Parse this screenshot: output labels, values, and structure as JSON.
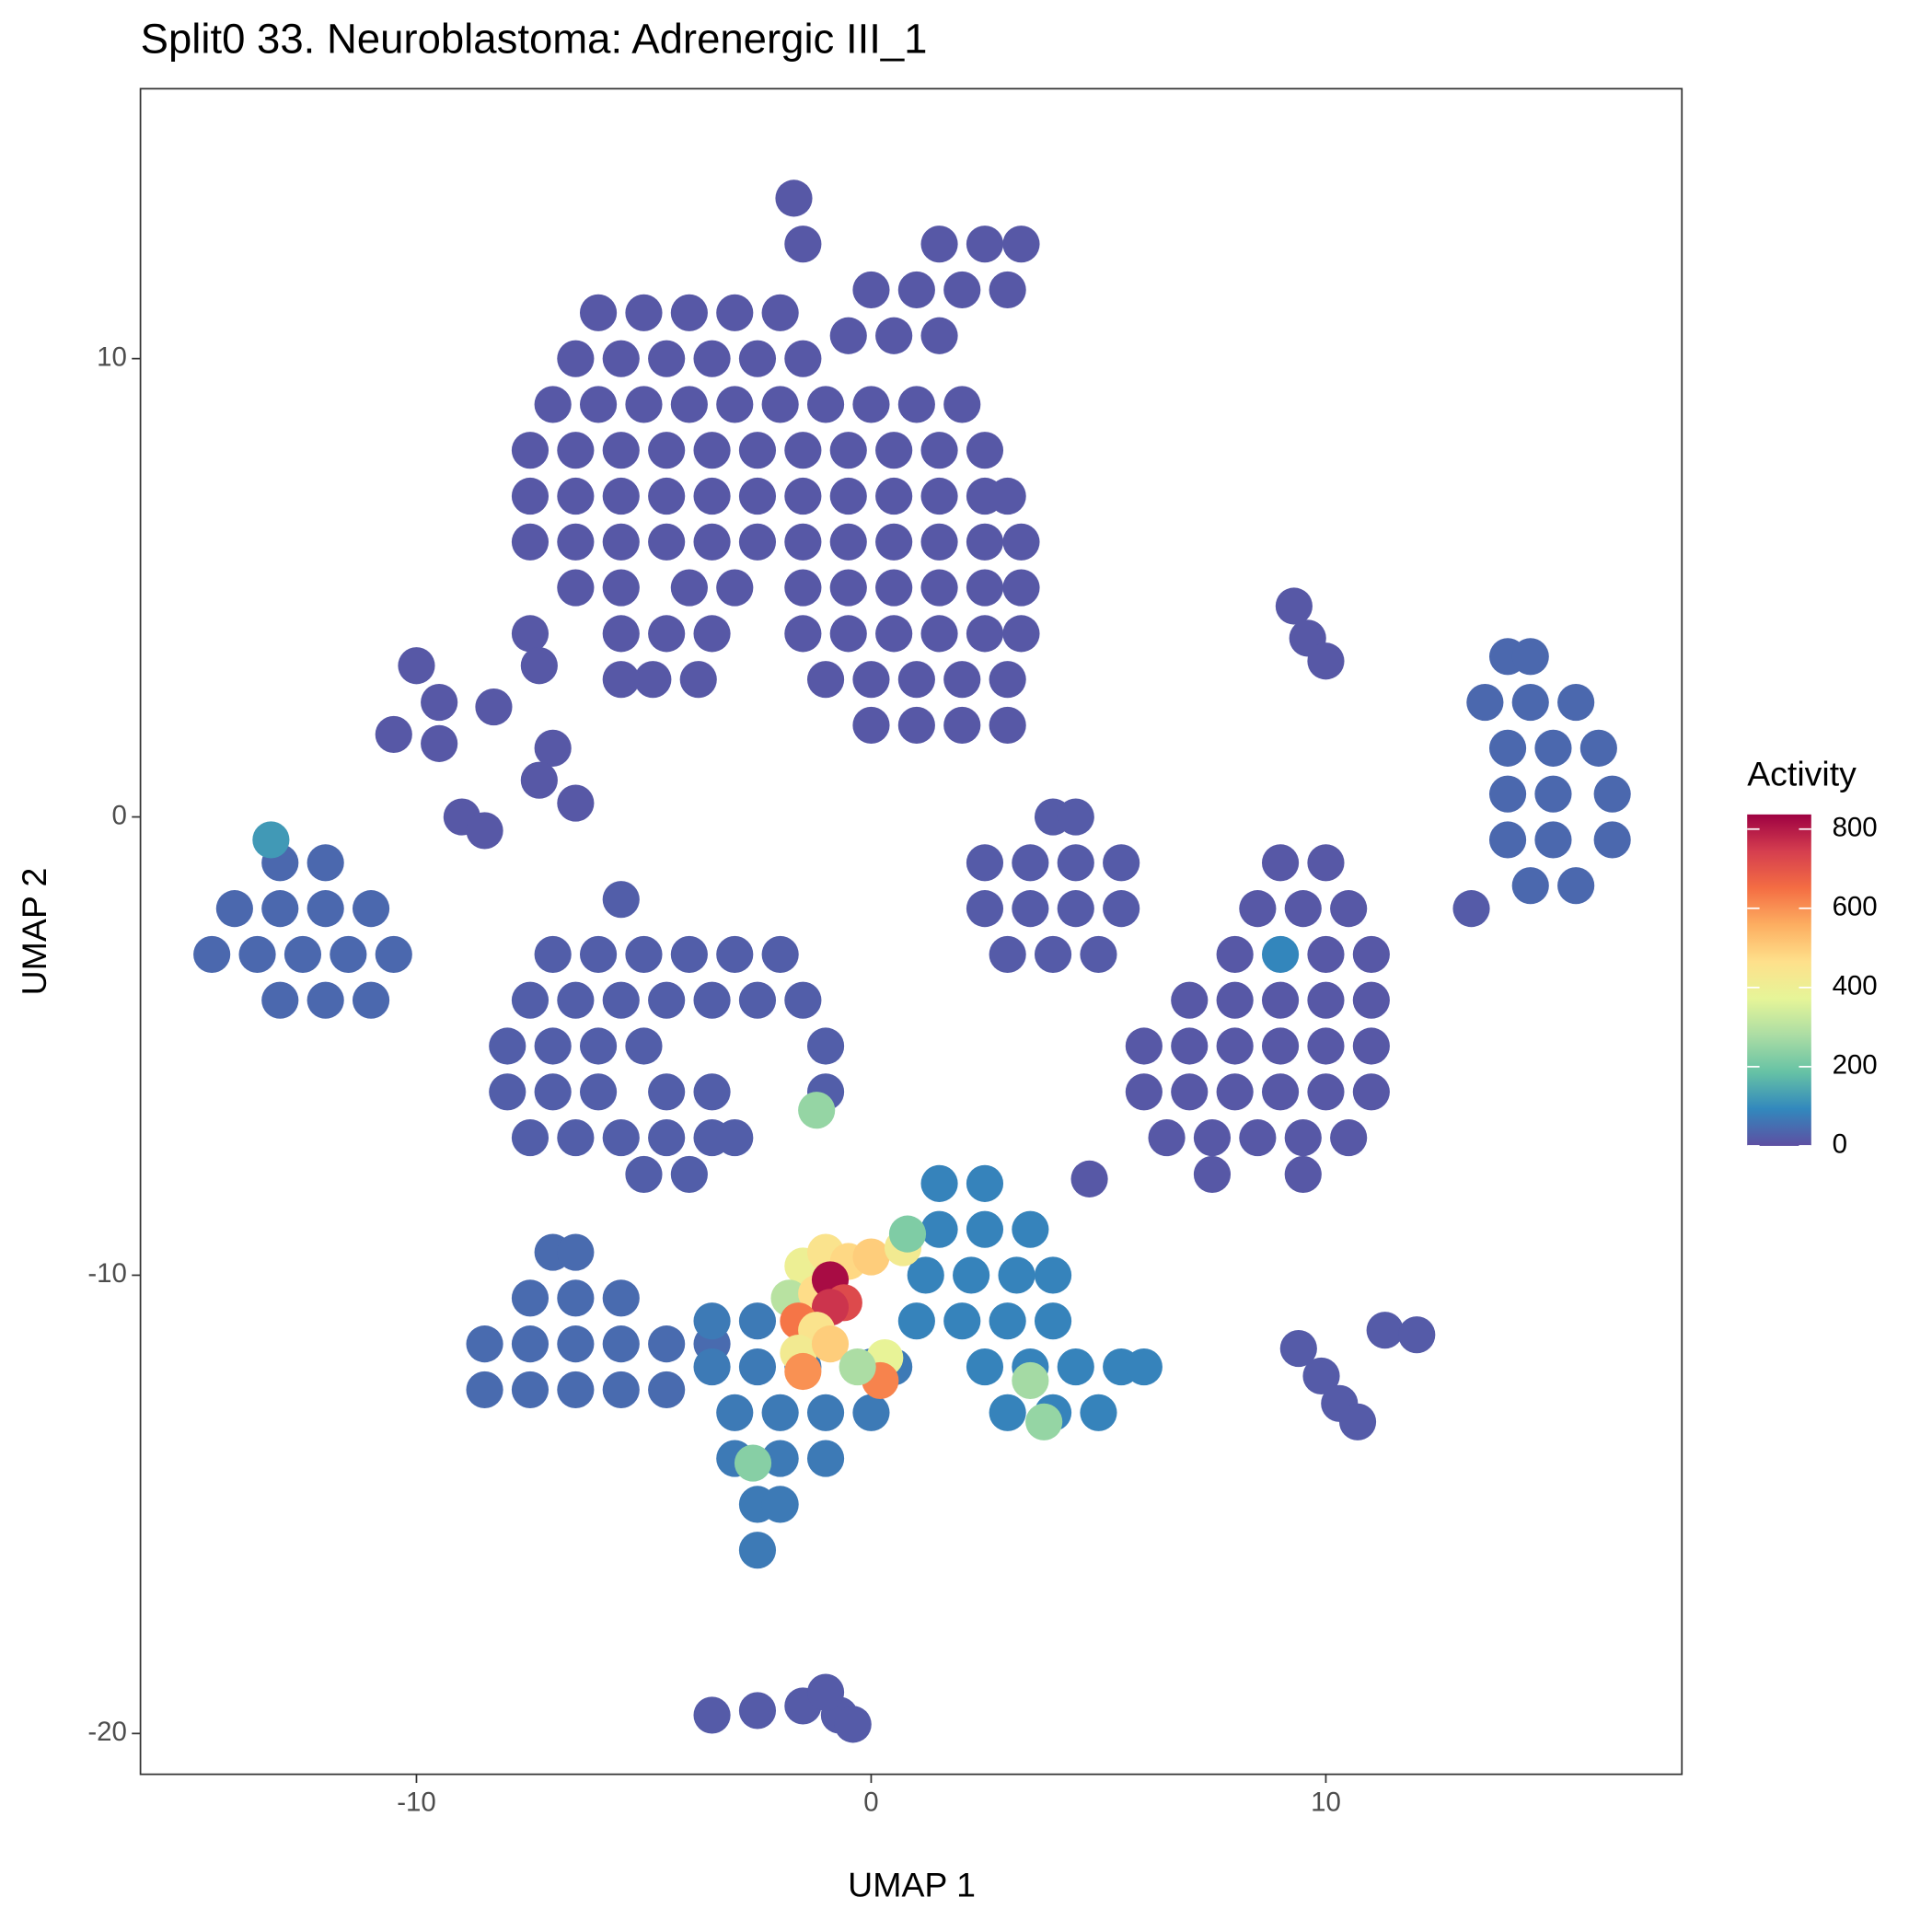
{
  "chart_data": {
    "type": "scatter",
    "title": "Split0 33. Neuroblastoma: Adrenergic III_1",
    "xlabel": "UMAP 1",
    "ylabel": "UMAP 2",
    "xlim": [
      -16.07,
      17.83
    ],
    "ylim": [
      -20.89,
      15.89
    ],
    "xticks": [
      -10,
      0,
      10
    ],
    "yticks": [
      -20,
      -10,
      0,
      10
    ],
    "colorbar": {
      "title": "Activity",
      "lim": [
        0,
        837
      ],
      "ticks": [
        0,
        200,
        400,
        600,
        800
      ],
      "colors": [
        "#5E4FA2",
        "#3288BD",
        "#66C2A5",
        "#ABDDA4",
        "#E6F598",
        "#FEE08B",
        "#FDAE61",
        "#F46D43",
        "#D53E4F",
        "#9E0142"
      ]
    },
    "x": [
      -6,
      -5,
      -4,
      -3,
      -2,
      -6.5,
      -5.5,
      -4.5,
      -3.5,
      -2.5,
      -1.5,
      -7,
      -6,
      -5,
      -4,
      -3,
      -2,
      -1,
      0,
      1,
      2,
      -7.5,
      -6.5,
      -5.5,
      -4.5,
      -3.5,
      -2.5,
      -1.5,
      -0.5,
      0.5,
      1.5,
      2.5,
      -7.5,
      -6.5,
      -5.5,
      -4.5,
      -3.5,
      -2.5,
      -1.5,
      -0.5,
      0.5,
      1.5,
      2.5,
      3,
      -7.5,
      -6.5,
      -5.5,
      -4.5,
      -3.5,
      -2.5,
      -1.5,
      -0.5,
      0.5,
      1.5,
      2.5,
      3.3,
      -6.5,
      -5.5,
      -4,
      -3,
      -1.5,
      -0.5,
      0.5,
      1.5,
      2.5,
      3.3,
      -5.5,
      -4.5,
      -3.5,
      -1.5,
      -0.5,
      0.5,
      1.5,
      2.5,
      3.3,
      -5.5,
      -4.8,
      -3.8,
      -1,
      0,
      1,
      2,
      3,
      0,
      1,
      2,
      3,
      -1.5,
      1.5,
      2.5,
      3.3,
      0,
      1,
      2,
      3,
      -0.5,
      0.5,
      1.5,
      -1.7,
      -13,
      -12,
      -14,
      -13,
      -12,
      -11,
      -14.5,
      -13.5,
      -12.5,
      -11.5,
      -10.5,
      -13,
      -12,
      -11,
      -13.2,
      -10,
      -9.5,
      -10.5,
      -9.5,
      -8.3,
      -7.5,
      -7.3,
      -7,
      -7.3,
      -6.5,
      -9,
      -8.5,
      -7,
      -6,
      -5,
      -4,
      -3,
      -2,
      -7.5,
      -6.5,
      -5.5,
      -4.5,
      -3.5,
      -2.5,
      -1.5,
      -8,
      -7,
      -6,
      -5,
      -1,
      -8,
      -7,
      -6,
      -4.5,
      -3.5,
      -1,
      -7.5,
      -6.5,
      -5.5,
      -4.5,
      -3.5,
      -3,
      -5,
      -4,
      -5.5,
      -1.2,
      4,
      4.5,
      2.5,
      3.5,
      4.5,
      5.5,
      2.5,
      3.5,
      4.5,
      5.5,
      3,
      4,
      5,
      9,
      10,
      8.5,
      9.5,
      10.5,
      8,
      9,
      10,
      11,
      7,
      8,
      9,
      10,
      11,
      6,
      7,
      8,
      9,
      10,
      11,
      6,
      7,
      8,
      9,
      10,
      11,
      6.5,
      7.5,
      8.5,
      9.5,
      10.5,
      7.5,
      9.5,
      4.8,
      14,
      14.5,
      13.5,
      14.5,
      15.5,
      14,
      15,
      16,
      14,
      15,
      16.3,
      14,
      15,
      16.3,
      14.5,
      15.5,
      13.2,
      9.3,
      9.6,
      10,
      -7,
      -6.5,
      -7.5,
      -6.5,
      -5.5,
      -8.5,
      -7.5,
      -6.5,
      -5.5,
      -4.5,
      -3.5,
      -8.5,
      -7.5,
      -6.5,
      -5.5,
      -4.5,
      -3.5,
      -2.5,
      -3.5,
      -2.5,
      -1.5,
      0,
      0.5,
      -3,
      -2,
      -1,
      0,
      -3,
      -2,
      -1,
      -2.5,
      -2,
      -2.5,
      -2.6,
      1.5,
      2.5,
      1.5,
      2.5,
      3.5,
      1.2,
      2.2,
      3.2,
      4,
      1,
      2,
      3,
      4,
      2.5,
      3.5,
      4.5,
      5.5,
      6,
      3,
      4,
      5,
      3.5,
      3.8,
      -3.5,
      -2.5,
      -1.5,
      -0.7,
      -1,
      -0.4,
      11.3,
      12,
      9.4,
      9.9,
      10.3,
      10.7,
      -1.5,
      -1,
      -0.5,
      0,
      -1.8,
      -1.2,
      -0.9,
      -0.6,
      -0.9,
      -1.6,
      -1.2,
      -1.6,
      -1.5,
      -0.9,
      0.3,
      0.2,
      -0.3,
      0.7,
      0.8
    ],
    "y": [
      11,
      11,
      11,
      11,
      11,
      10,
      10,
      10,
      10,
      10,
      10,
      9,
      9,
      9,
      9,
      9,
      9,
      9,
      9,
      9,
      9,
      8,
      8,
      8,
      8,
      8,
      8,
      8,
      8,
      8,
      8,
      8,
      7,
      7,
      7,
      7,
      7,
      7,
      7,
      7,
      7,
      7,
      7,
      7,
      6,
      6,
      6,
      6,
      6,
      6,
      6,
      6,
      6,
      6,
      6,
      6,
      5,
      5,
      5,
      5,
      5,
      5,
      5,
      5,
      5,
      5,
      4,
      4,
      4,
      4,
      4,
      4,
      4,
      4,
      4,
      3,
      3,
      3,
      3,
      3,
      3,
      3,
      3,
      2,
      2,
      2,
      2,
      12.5,
      12.5,
      12.5,
      12.5,
      11.5,
      11.5,
      11.5,
      11.5,
      10.5,
      10.5,
      10.5,
      13.5,
      -1,
      -1,
      -2,
      -2,
      -2,
      -2,
      -3,
      -3,
      -3,
      -3,
      -3,
      -4,
      -4,
      -4,
      -0.5,
      3.3,
      2.5,
      1.8,
      1.6,
      2.4,
      4,
      3.3,
      1.5,
      0.8,
      0.3,
      0,
      -0.3,
      -3,
      -3,
      -3,
      -3,
      -3,
      -3,
      -4,
      -4,
      -4,
      -4,
      -4,
      -4,
      -4,
      -5,
      -5,
      -5,
      -5,
      -5,
      -6,
      -6,
      -6,
      -6,
      -6,
      -6,
      -7,
      -7,
      -7,
      -7,
      -7,
      -7,
      -7.8,
      -7.8,
      -1.8,
      -6.4,
      0,
      0,
      -1,
      -1,
      -1,
      -1,
      -2,
      -2,
      -2,
      -2,
      -3,
      -3,
      -3,
      -1,
      -1,
      -2,
      -2,
      -2,
      -3,
      -3,
      -3,
      -3,
      -4,
      -4,
      -4,
      -4,
      -4,
      -5,
      -5,
      -5,
      -5,
      -5,
      -5,
      -6,
      -6,
      -6,
      -6,
      -6,
      -6,
      -7,
      -7,
      -7,
      -7,
      -7,
      -7.8,
      -7.8,
      -7.9,
      3.5,
      3.5,
      2.5,
      2.5,
      2.5,
      1.5,
      1.5,
      1.5,
      0.5,
      0.5,
      0.5,
      -0.5,
      -0.5,
      -0.5,
      -1.5,
      -1.5,
      -2,
      4.6,
      3.9,
      3.4,
      -9.5,
      -9.5,
      -10.5,
      -10.5,
      -10.5,
      -11.5,
      -11.5,
      -11.5,
      -11.5,
      -11.5,
      -11.5,
      -12.5,
      -12.5,
      -12.5,
      -12.5,
      -12.5,
      -11,
      -11,
      -12,
      -12,
      -12,
      -12,
      -12,
      -13,
      -13,
      -13,
      -13,
      -14,
      -14,
      -14,
      -15,
      -15,
      -16,
      -14.1,
      -8,
      -8,
      -9,
      -9,
      -9,
      -10,
      -10,
      -10,
      -10,
      -11,
      -11,
      -11,
      -11,
      -12,
      -12,
      -12,
      -12,
      -12,
      -13,
      -13,
      -13,
      -12.3,
      -13.2,
      -19.6,
      -19.5,
      -19.4,
      -19.6,
      -19.1,
      -19.8,
      -11.2,
      -11.3,
      -11.6,
      -12.2,
      -12.8,
      -13.2,
      -9.8,
      -9.5,
      -9.7,
      -9.6,
      -10.5,
      -10.4,
      -10.1,
      -10.6,
      -10.7,
      -11,
      -11.2,
      -11.7,
      -12.1,
      -11.5,
      -11.8,
      -12.3,
      -12,
      -9.4,
      -9.1
    ],
    "activity": [
      15,
      15,
      15,
      15,
      15,
      15,
      15,
      15,
      15,
      15,
      15,
      15,
      15,
      15,
      15,
      15,
      15,
      15,
      15,
      15,
      15,
      15,
      15,
      15,
      15,
      15,
      15,
      15,
      15,
      15,
      15,
      15,
      15,
      15,
      15,
      15,
      15,
      15,
      15,
      15,
      15,
      15,
      15,
      15,
      15,
      15,
      15,
      15,
      15,
      15,
      15,
      15,
      15,
      15,
      15,
      15,
      15,
      15,
      15,
      15,
      15,
      15,
      15,
      15,
      15,
      15,
      15,
      15,
      15,
      15,
      15,
      15,
      15,
      15,
      15,
      15,
      15,
      15,
      15,
      15,
      15,
      15,
      15,
      15,
      15,
      15,
      15,
      15,
      15,
      15,
      15,
      15,
      15,
      15,
      15,
      15,
      15,
      15,
      15,
      40,
      40,
      40,
      40,
      40,
      40,
      40,
      40,
      40,
      40,
      40,
      40,
      40,
      40,
      120,
      15,
      15,
      15,
      15,
      15,
      15,
      15,
      15,
      15,
      15,
      15,
      15,
      25,
      25,
      25,
      25,
      25,
      25,
      25,
      25,
      25,
      25,
      25,
      25,
      25,
      25,
      25,
      25,
      25,
      25,
      25,
      25,
      25,
      25,
      25,
      25,
      25,
      25,
      25,
      25,
      25,
      25,
      25,
      25,
      25,
      250,
      20,
      20,
      20,
      20,
      20,
      20,
      20,
      20,
      20,
      20,
      20,
      20,
      20,
      15,
      15,
      15,
      15,
      15,
      15,
      90,
      15,
      15,
      15,
      15,
      15,
      15,
      15,
      15,
      15,
      15,
      15,
      15,
      15,
      15,
      15,
      15,
      15,
      15,
      15,
      15,
      15,
      15,
      15,
      15,
      15,
      15,
      15,
      40,
      40,
      40,
      40,
      40,
      40,
      40,
      40,
      40,
      40,
      40,
      40,
      40,
      40,
      40,
      40,
      20,
      15,
      15,
      15,
      45,
      45,
      45,
      45,
      45,
      45,
      45,
      45,
      45,
      45,
      45,
      45,
      45,
      45,
      45,
      45,
      70,
      70,
      70,
      70,
      70,
      70,
      70,
      70,
      70,
      70,
      70,
      70,
      70,
      70,
      70,
      70,
      70,
      230,
      85,
      85,
      85,
      85,
      85,
      85,
      85,
      85,
      85,
      85,
      85,
      85,
      85,
      85,
      85,
      85,
      85,
      85,
      85,
      85,
      85,
      270,
      250,
      20,
      20,
      20,
      20,
      20,
      20,
      20,
      20,
      20,
      20,
      20,
      20,
      400,
      450,
      480,
      500,
      300,
      470,
      820,
      720,
      760,
      640,
      450,
      420,
      600,
      500,
      380,
      620,
      280,
      420,
      220
    ]
  }
}
